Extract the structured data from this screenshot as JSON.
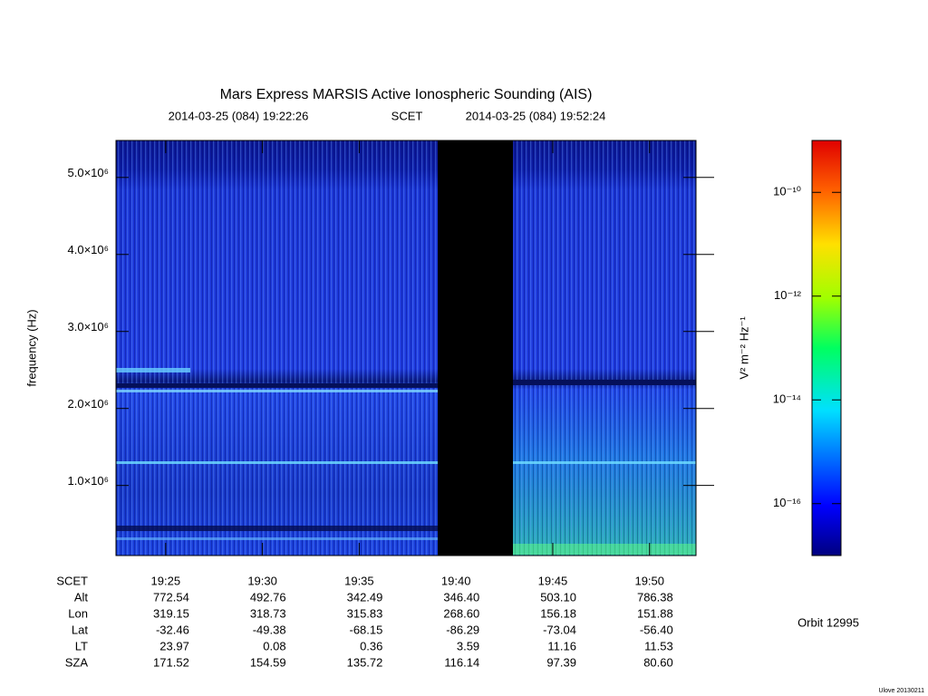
{
  "chart_data": {
    "type": "spectrogram",
    "title": "Mars Express MARSIS Active Ionospheric Sounding (AIS)",
    "start": "2014-03-25 (084) 19:22:26",
    "time_system": "SCET",
    "end": "2014-03-25 (084) 19:52:24",
    "y_label": "frequency (Hz)",
    "ylim": [
      90000,
      5480000
    ],
    "yticks": [
      {
        "value": 1000000,
        "label": "1.0×10⁶"
      },
      {
        "value": 2000000,
        "label": "2.0×10⁶"
      },
      {
        "value": 3000000,
        "label": "3.0×10⁶"
      },
      {
        "value": 4000000,
        "label": "4.0×10⁶"
      },
      {
        "value": 5000000,
        "label": "5.0×10⁶"
      }
    ],
    "xticks": [
      "19:25",
      "19:30",
      "19:35",
      "19:40",
      "19:45",
      "19:50"
    ],
    "ephemeris": [
      {
        "name": "Alt",
        "values": [
          "772.54",
          "492.76",
          "342.49",
          "346.40",
          "503.10",
          "786.38"
        ]
      },
      {
        "name": "Lon",
        "values": [
          "319.15",
          "318.73",
          "315.83",
          "268.60",
          "156.18",
          "151.88"
        ]
      },
      {
        "name": "Lat",
        "values": [
          "-32.46",
          "-49.38",
          "-68.15",
          "-86.29",
          "-73.04",
          "-56.40"
        ]
      },
      {
        "name": "LT",
        "values": [
          "23.97",
          "0.08",
          "0.36",
          "3.59",
          "11.16",
          "11.53"
        ]
      },
      {
        "name": "SZA",
        "values": [
          "171.52",
          "154.59",
          "135.72",
          "116.14",
          "97.39",
          "80.60"
        ]
      }
    ],
    "colorbar": {
      "label": "V² m⁻² Hz⁻¹",
      "log": true,
      "lim": [
        1e-17,
        1e-09
      ],
      "ticks": [
        {
          "value": 1e-16,
          "label": "10⁻¹⁶"
        },
        {
          "value": 1e-14,
          "label": "10⁻¹⁴"
        },
        {
          "value": 1e-12,
          "label": "10⁻¹²"
        },
        {
          "value": 1e-10,
          "label": "10⁻¹⁰"
        }
      ]
    },
    "orbit": "Orbit 12995",
    "footer": "Ulove 20130211"
  }
}
